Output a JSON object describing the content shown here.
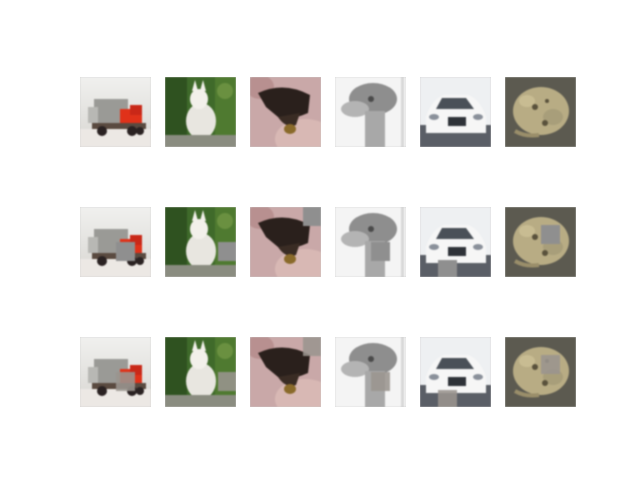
{
  "grid": {
    "rows": 3,
    "cols": 6,
    "row_types": [
      "original",
      "masked",
      "reconstructed"
    ],
    "images": [
      {
        "subject": "toy-truck",
        "mask_col": 2,
        "mask_row": 2
      },
      {
        "subject": "white-dog",
        "mask_col": 3,
        "mask_row": 2
      },
      {
        "subject": "frog-on-hand",
        "mask_col": 3,
        "mask_row": 0
      },
      {
        "subject": "ostrich-head",
        "mask_col": 2,
        "mask_row": 2
      },
      {
        "subject": "white-car",
        "mask_col": 1,
        "mask_row": 3
      },
      {
        "subject": "toad",
        "mask_col": 2,
        "mask_row": 1
      }
    ]
  }
}
